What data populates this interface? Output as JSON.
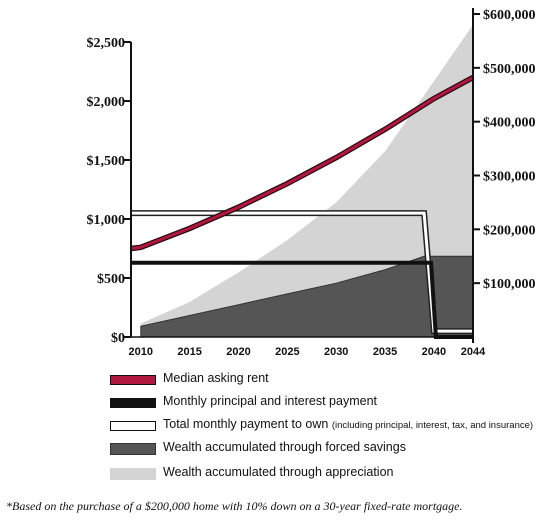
{
  "chart_data": {
    "type": "line",
    "x_ticks": [
      "2010",
      "2015",
      "2020",
      "2025",
      "2030",
      "2035",
      "2040",
      "2044"
    ],
    "xlim": [
      2009,
      2044
    ],
    "left_axis": {
      "ticks": [
        {
          "value": 0,
          "label": "$0"
        },
        {
          "value": 500,
          "label": "$500"
        },
        {
          "value": 1000,
          "label": "$1,000"
        },
        {
          "value": 1500,
          "label": "$1,500"
        },
        {
          "value": 2000,
          "label": "$2,000"
        },
        {
          "value": 2500,
          "label": "$2,500"
        }
      ],
      "ylim": [
        0,
        2500
      ]
    },
    "right_axis": {
      "ticks": [
        {
          "value": 100000,
          "label": "$100,000"
        },
        {
          "value": 200000,
          "label": "$200,000"
        },
        {
          "value": 300000,
          "label": "$300,000"
        },
        {
          "value": 400000,
          "label": "$400,000"
        },
        {
          "value": 500000,
          "label": "$500,000"
        },
        {
          "value": 600000,
          "label": "$600,000"
        }
      ],
      "ylim": [
        0,
        600000
      ]
    },
    "series": [
      {
        "name": "Median asking rent",
        "axis": "left",
        "kind": "line",
        "color": "#b0183f",
        "x": [
          2009,
          2010,
          2015,
          2020,
          2025,
          2030,
          2035,
          2040,
          2044
        ],
        "y": [
          750,
          760,
          920,
          1100,
          1300,
          1520,
          1760,
          2020,
          2200
        ]
      },
      {
        "name": "Monthly principal and interest payment",
        "axis": "left",
        "kind": "line",
        "color": "#111111",
        "x": [
          2009,
          2039,
          2039.7,
          2040.2,
          2044
        ],
        "y": [
          630,
          630,
          630,
          0,
          0
        ]
      },
      {
        "name": "Total monthly payment to own",
        "note": "(including principal, interest, tax, and insurance)",
        "axis": "left",
        "kind": "outline",
        "color": "#222222",
        "x": [
          2009,
          2038.5,
          2039,
          2040,
          2044
        ],
        "y": [
          1050,
          1050,
          1050,
          50,
          50
        ]
      },
      {
        "name": "Wealth accumulated through forced savings",
        "axis": "right",
        "kind": "area",
        "color": "#555555",
        "x": [
          2010,
          2015,
          2020,
          2025,
          2030,
          2035,
          2039,
          2044
        ],
        "y": [
          20000,
          40000,
          60000,
          80000,
          100000,
          125000,
          150000,
          150000
        ]
      },
      {
        "name": "Wealth accumulated through appreciation",
        "axis": "right",
        "kind": "area",
        "color": "#d4d4d4",
        "x": [
          2010,
          2015,
          2020,
          2025,
          2030,
          2035,
          2040,
          2044
        ],
        "y": [
          25000,
          65000,
          120000,
          180000,
          250000,
          345000,
          475000,
          580000
        ]
      }
    ],
    "footnote": "*Based on the purchase of a $200,000 home with 10% down on a 30-year fixed-rate mortgage."
  }
}
